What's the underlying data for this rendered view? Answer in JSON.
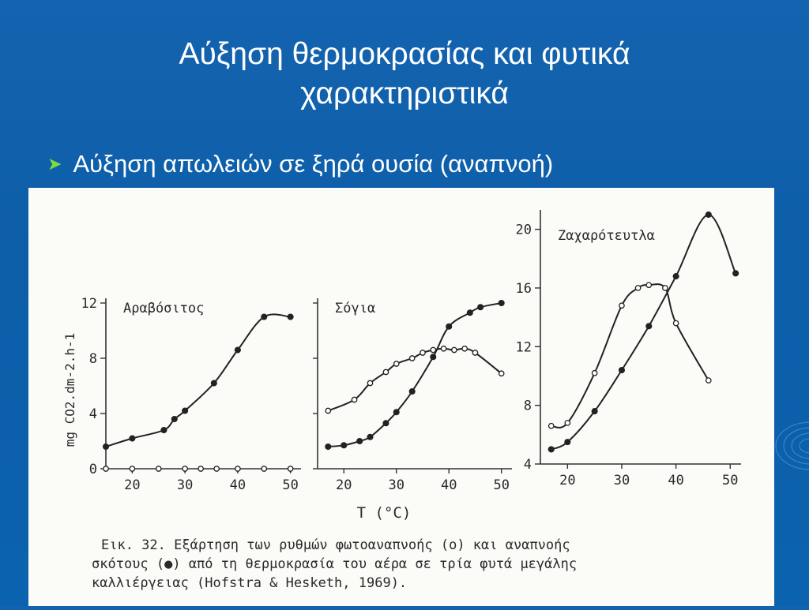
{
  "slide": {
    "title_line1": "Αύξηση θερμοκρασίας και φυτικά",
    "title_line2": "χαρακτηριστικά",
    "bullet": "Αύξηση απωλειών σε ξηρά ουσία (αναπνοή)",
    "bullet_icon": "arrow-bullet-icon",
    "colors": {
      "background": "#0d5ea8",
      "title": "#ffffff",
      "bullet_arrow": "#7ddc3c",
      "figure_bg": "#fbfbf7"
    }
  },
  "figure": {
    "ylabel": "mg CO2.dm-2.h-1",
    "xlabel": "T (°C)",
    "caption_line1": "Εικ. 32. Εξάρτηση των ρυθμών φωτοαναπνοής (ο) και αναπνοής",
    "caption_line2": "σκότους (●) από τη θερμοκρασία του αέρα σε τρία φυτά μεγάλης",
    "caption_line3": "καλλιέργειας (Hofstra & Hesketh, 1969)."
  },
  "chart_data": [
    {
      "type": "scatter",
      "title": "Αραβόσιτος",
      "xlim": [
        15,
        52
      ],
      "ylim": [
        0,
        12
      ],
      "xticks": [
        20,
        30,
        40,
        50
      ],
      "yticks": [
        0,
        4,
        8,
        12
      ],
      "series": [
        {
          "marker": "open",
          "x": [
            15,
            20,
            25,
            30,
            33,
            36,
            40,
            45,
            50
          ],
          "y": [
            0,
            0,
            0,
            0,
            0,
            0,
            0,
            0,
            0
          ]
        },
        {
          "marker": "filled",
          "x": [
            15,
            20,
            26,
            28,
            30,
            35.5,
            40,
            45,
            50
          ],
          "y": [
            1.6,
            2.2,
            2.8,
            3.6,
            4.2,
            6.2,
            8.6,
            11.0,
            11.0
          ]
        }
      ]
    },
    {
      "type": "scatter",
      "title": "Σόγια",
      "xlim": [
        15,
        52
      ],
      "ylim": [
        0,
        12
      ],
      "xticks": [
        20,
        30,
        40,
        50
      ],
      "yticks": [],
      "series": [
        {
          "marker": "open",
          "x": [
            17,
            22,
            25,
            28,
            30,
            33,
            35,
            37,
            39,
            41,
            43,
            45,
            50
          ],
          "y": [
            4.2,
            5.0,
            6.2,
            7.0,
            7.6,
            8.0,
            8.4,
            8.6,
            8.7,
            8.6,
            8.7,
            8.4,
            6.9
          ]
        },
        {
          "marker": "filled",
          "x": [
            17,
            20,
            23,
            25,
            28,
            30,
            33,
            37,
            40,
            44,
            46,
            50
          ],
          "y": [
            1.6,
            1.7,
            2.0,
            2.3,
            3.3,
            4.1,
            5.6,
            8.1,
            10.3,
            11.3,
            11.7,
            12.0
          ]
        }
      ]
    },
    {
      "type": "scatter",
      "title": "Ζαχαρότευτλα",
      "xlim": [
        15,
        52
      ],
      "ylim": [
        4,
        21
      ],
      "xticks": [
        20,
        30,
        40,
        50
      ],
      "yticks": [
        4,
        8,
        12,
        16,
        20
      ],
      "series": [
        {
          "marker": "open",
          "x": [
            17,
            20,
            25,
            30,
            33,
            35,
            38,
            40,
            46
          ],
          "y": [
            6.6,
            6.8,
            10.2,
            14.8,
            16.0,
            16.2,
            16.0,
            13.6,
            9.7
          ]
        },
        {
          "marker": "filled",
          "x": [
            17,
            20,
            25,
            30,
            35,
            40,
            46,
            51
          ],
          "y": [
            5.0,
            5.5,
            7.6,
            10.4,
            13.4,
            16.8,
            21.0,
            17.0
          ]
        }
      ]
    }
  ]
}
